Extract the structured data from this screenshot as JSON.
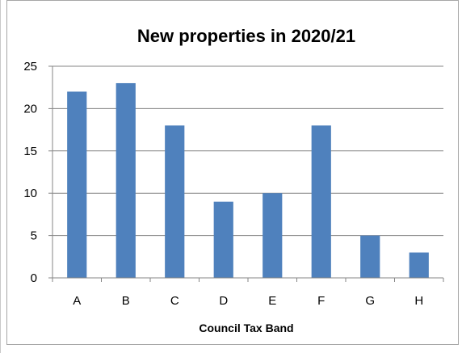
{
  "chart_data": {
    "type": "bar",
    "title": "New properties in 2020/21",
    "xlabel": "Council Tax Band",
    "ylabel": "",
    "categories": [
      "A",
      "B",
      "C",
      "D",
      "E",
      "F",
      "G",
      "H"
    ],
    "values": [
      22,
      23,
      18,
      9,
      10,
      18,
      5,
      3
    ],
    "ylim": [
      0,
      25
    ],
    "yticks": [
      0,
      5,
      10,
      15,
      20,
      25
    ],
    "grid": true,
    "legend": "none",
    "bar_color": "#4f81bd",
    "grid_color": "#868686"
  }
}
